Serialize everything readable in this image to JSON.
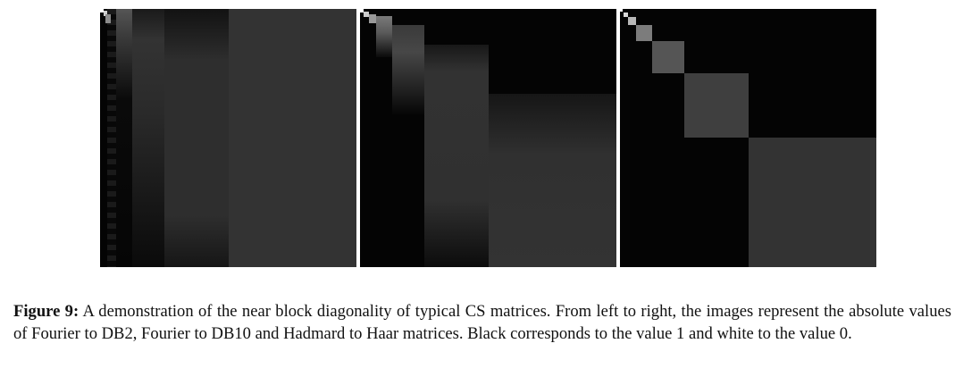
{
  "figure": {
    "panels": [
      {
        "id": "fourier-db2",
        "description_visible": false
      },
      {
        "id": "fourier-db10",
        "description_visible": false
      },
      {
        "id": "hadamard-haar",
        "description_visible": false
      }
    ],
    "caption": {
      "label": "Figure 9:",
      "text": " A demonstration of the near block diagonality of typical CS matrices. From left to right, the images represent the absolute values of Fourier to DB2, Fourier to DB10 and Hadmard to Haar matrices. Black corresponds to the value 1 and white to the value 0."
    },
    "colors": {
      "background": "#ffffff",
      "panel": "#040404"
    }
  }
}
